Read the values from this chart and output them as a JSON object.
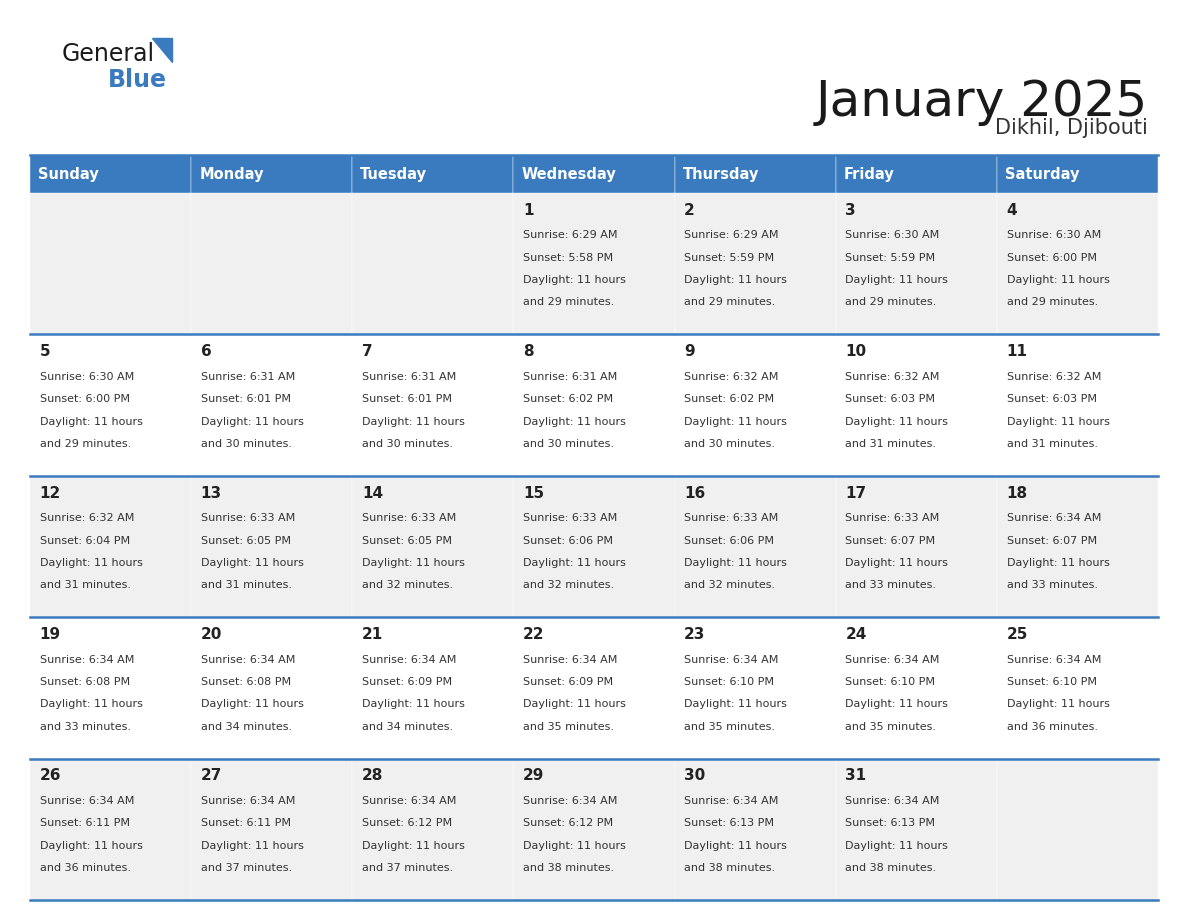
{
  "title": "January 2025",
  "subtitle": "Dikhil, Djibouti",
  "days_of_week": [
    "Sunday",
    "Monday",
    "Tuesday",
    "Wednesday",
    "Thursday",
    "Friday",
    "Saturday"
  ],
  "header_bg": "#3a7abf",
  "header_text_color": "#ffffff",
  "row_bg_odd": "#f0f0f0",
  "row_bg_even": "#ffffff",
  "cell_text_color": "#333333",
  "day_num_color": "#222222",
  "border_color": "#3a7abf",
  "title_color": "#1a1a1a",
  "subtitle_color": "#333333",
  "general_text_color": "#1a1a1a",
  "general_blue_text": "#3a7abf",
  "logo_triangle_color": "#3a7abf",
  "calendar_data": [
    {
      "day": 1,
      "col": 3,
      "row": 0,
      "sunrise": "6:29 AM",
      "sunset": "5:58 PM",
      "daylight_hours": 11,
      "daylight_minutes": 29
    },
    {
      "day": 2,
      "col": 4,
      "row": 0,
      "sunrise": "6:29 AM",
      "sunset": "5:59 PM",
      "daylight_hours": 11,
      "daylight_minutes": 29
    },
    {
      "day": 3,
      "col": 5,
      "row": 0,
      "sunrise": "6:30 AM",
      "sunset": "5:59 PM",
      "daylight_hours": 11,
      "daylight_minutes": 29
    },
    {
      "day": 4,
      "col": 6,
      "row": 0,
      "sunrise": "6:30 AM",
      "sunset": "6:00 PM",
      "daylight_hours": 11,
      "daylight_minutes": 29
    },
    {
      "day": 5,
      "col": 0,
      "row": 1,
      "sunrise": "6:30 AM",
      "sunset": "6:00 PM",
      "daylight_hours": 11,
      "daylight_minutes": 29
    },
    {
      "day": 6,
      "col": 1,
      "row": 1,
      "sunrise": "6:31 AM",
      "sunset": "6:01 PM",
      "daylight_hours": 11,
      "daylight_minutes": 30
    },
    {
      "day": 7,
      "col": 2,
      "row": 1,
      "sunrise": "6:31 AM",
      "sunset": "6:01 PM",
      "daylight_hours": 11,
      "daylight_minutes": 30
    },
    {
      "day": 8,
      "col": 3,
      "row": 1,
      "sunrise": "6:31 AM",
      "sunset": "6:02 PM",
      "daylight_hours": 11,
      "daylight_minutes": 30
    },
    {
      "day": 9,
      "col": 4,
      "row": 1,
      "sunrise": "6:32 AM",
      "sunset": "6:02 PM",
      "daylight_hours": 11,
      "daylight_minutes": 30
    },
    {
      "day": 10,
      "col": 5,
      "row": 1,
      "sunrise": "6:32 AM",
      "sunset": "6:03 PM",
      "daylight_hours": 11,
      "daylight_minutes": 31
    },
    {
      "day": 11,
      "col": 6,
      "row": 1,
      "sunrise": "6:32 AM",
      "sunset": "6:03 PM",
      "daylight_hours": 11,
      "daylight_minutes": 31
    },
    {
      "day": 12,
      "col": 0,
      "row": 2,
      "sunrise": "6:32 AM",
      "sunset": "6:04 PM",
      "daylight_hours": 11,
      "daylight_minutes": 31
    },
    {
      "day": 13,
      "col": 1,
      "row": 2,
      "sunrise": "6:33 AM",
      "sunset": "6:05 PM",
      "daylight_hours": 11,
      "daylight_minutes": 31
    },
    {
      "day": 14,
      "col": 2,
      "row": 2,
      "sunrise": "6:33 AM",
      "sunset": "6:05 PM",
      "daylight_hours": 11,
      "daylight_minutes": 32
    },
    {
      "day": 15,
      "col": 3,
      "row": 2,
      "sunrise": "6:33 AM",
      "sunset": "6:06 PM",
      "daylight_hours": 11,
      "daylight_minutes": 32
    },
    {
      "day": 16,
      "col": 4,
      "row": 2,
      "sunrise": "6:33 AM",
      "sunset": "6:06 PM",
      "daylight_hours": 11,
      "daylight_minutes": 32
    },
    {
      "day": 17,
      "col": 5,
      "row": 2,
      "sunrise": "6:33 AM",
      "sunset": "6:07 PM",
      "daylight_hours": 11,
      "daylight_minutes": 33
    },
    {
      "day": 18,
      "col": 6,
      "row": 2,
      "sunrise": "6:34 AM",
      "sunset": "6:07 PM",
      "daylight_hours": 11,
      "daylight_minutes": 33
    },
    {
      "day": 19,
      "col": 0,
      "row": 3,
      "sunrise": "6:34 AM",
      "sunset": "6:08 PM",
      "daylight_hours": 11,
      "daylight_minutes": 33
    },
    {
      "day": 20,
      "col": 1,
      "row": 3,
      "sunrise": "6:34 AM",
      "sunset": "6:08 PM",
      "daylight_hours": 11,
      "daylight_minutes": 34
    },
    {
      "day": 21,
      "col": 2,
      "row": 3,
      "sunrise": "6:34 AM",
      "sunset": "6:09 PM",
      "daylight_hours": 11,
      "daylight_minutes": 34
    },
    {
      "day": 22,
      "col": 3,
      "row": 3,
      "sunrise": "6:34 AM",
      "sunset": "6:09 PM",
      "daylight_hours": 11,
      "daylight_minutes": 35
    },
    {
      "day": 23,
      "col": 4,
      "row": 3,
      "sunrise": "6:34 AM",
      "sunset": "6:10 PM",
      "daylight_hours": 11,
      "daylight_minutes": 35
    },
    {
      "day": 24,
      "col": 5,
      "row": 3,
      "sunrise": "6:34 AM",
      "sunset": "6:10 PM",
      "daylight_hours": 11,
      "daylight_minutes": 35
    },
    {
      "day": 25,
      "col": 6,
      "row": 3,
      "sunrise": "6:34 AM",
      "sunset": "6:10 PM",
      "daylight_hours": 11,
      "daylight_minutes": 36
    },
    {
      "day": 26,
      "col": 0,
      "row": 4,
      "sunrise": "6:34 AM",
      "sunset": "6:11 PM",
      "daylight_hours": 11,
      "daylight_minutes": 36
    },
    {
      "day": 27,
      "col": 1,
      "row": 4,
      "sunrise": "6:34 AM",
      "sunset": "6:11 PM",
      "daylight_hours": 11,
      "daylight_minutes": 37
    },
    {
      "day": 28,
      "col": 2,
      "row": 4,
      "sunrise": "6:34 AM",
      "sunset": "6:12 PM",
      "daylight_hours": 11,
      "daylight_minutes": 37
    },
    {
      "day": 29,
      "col": 3,
      "row": 4,
      "sunrise": "6:34 AM",
      "sunset": "6:12 PM",
      "daylight_hours": 11,
      "daylight_minutes": 38
    },
    {
      "day": 30,
      "col": 4,
      "row": 4,
      "sunrise": "6:34 AM",
      "sunset": "6:13 PM",
      "daylight_hours": 11,
      "daylight_minutes": 38
    },
    {
      "day": 31,
      "col": 5,
      "row": 4,
      "sunrise": "6:34 AM",
      "sunset": "6:13 PM",
      "daylight_hours": 11,
      "daylight_minutes": 38
    }
  ]
}
